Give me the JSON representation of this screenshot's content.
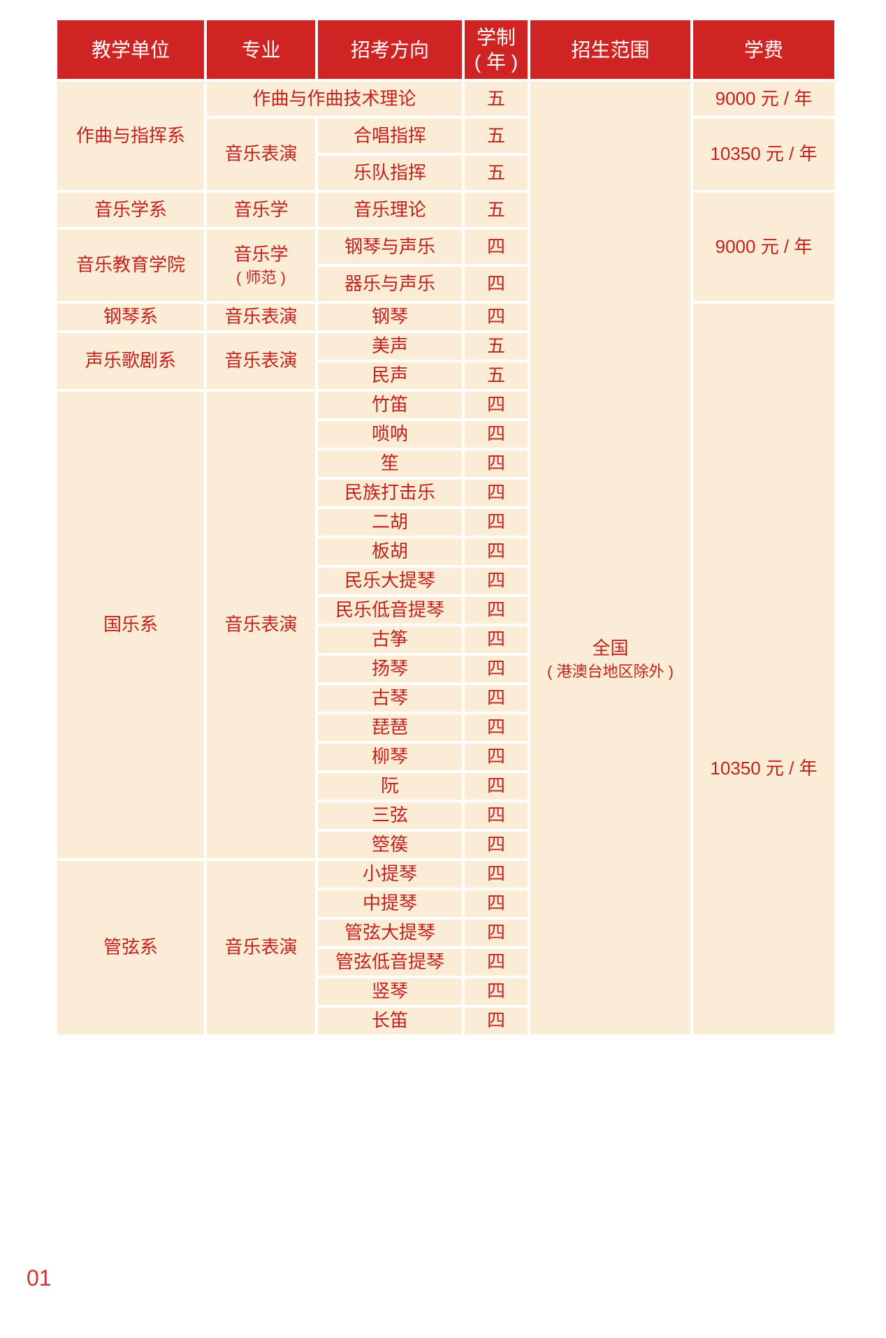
{
  "page": {
    "number": "01"
  },
  "colors": {
    "header_bg": "#ce2424",
    "header_text": "#ffffff",
    "cell_bg": "#faecd5",
    "text_red": "#c32020",
    "page_bg": "#ffffff",
    "page_number": "#d2302f"
  },
  "table": {
    "columns": [
      {
        "key": "unit",
        "label": "教学单位"
      },
      {
        "key": "major",
        "label": "专业"
      },
      {
        "key": "direction",
        "label": "招考方向"
      },
      {
        "key": "duration",
        "label": "学制",
        "label2": "( 年 )"
      },
      {
        "key": "scope",
        "label": "招生范围"
      },
      {
        "key": "fee",
        "label": "学费"
      }
    ],
    "rows": [
      {
        "cells": [
          {
            "col": "unit",
            "t": "作曲与指挥系",
            "rs": 3
          },
          {
            "col": "direction",
            "t": "作曲与作曲技术理论",
            "cs": 2
          },
          {
            "col": "duration",
            "t": "五"
          },
          {
            "col": "scope",
            "t": "全国",
            "t2": "( 港澳台地区除外 )",
            "rs": 31,
            "pad": 290
          },
          {
            "col": "fee",
            "t": "9000 元 / 年"
          }
        ]
      },
      {
        "cells": [
          {
            "col": "major",
            "t": "音乐表演",
            "rs": 2
          },
          {
            "col": "direction",
            "t": "合唱指挥"
          },
          {
            "col": "duration",
            "t": "五"
          },
          {
            "col": "fee",
            "t": "10350 元 / 年",
            "rs": 2
          }
        ]
      },
      {
        "cells": [
          {
            "col": "direction",
            "t": "乐队指挥"
          },
          {
            "col": "duration",
            "t": "五"
          }
        ]
      },
      {
        "cells": [
          {
            "col": "unit",
            "t": "音乐学系"
          },
          {
            "col": "major",
            "t": "音乐学"
          },
          {
            "col": "direction",
            "t": "音乐理论"
          },
          {
            "col": "duration",
            "t": "五"
          },
          {
            "col": "fee",
            "t": "9000 元 / 年",
            "rs": 3
          }
        ]
      },
      {
        "cells": [
          {
            "col": "unit",
            "t": "音乐教育学院",
            "rs": 2
          },
          {
            "col": "major",
            "t": "音乐学",
            "t2": "( 师范 )",
            "rs": 2
          },
          {
            "col": "direction",
            "t": "钢琴与声乐"
          },
          {
            "col": "duration",
            "t": "四"
          }
        ]
      },
      {
        "cells": [
          {
            "col": "direction",
            "t": "器乐与声乐"
          },
          {
            "col": "duration",
            "t": "四"
          }
        ]
      },
      {
        "cells": [
          {
            "col": "unit",
            "t": "钢琴系"
          },
          {
            "col": "major",
            "t": "音乐表演"
          },
          {
            "col": "direction",
            "t": "钢琴"
          },
          {
            "col": "duration",
            "t": "四"
          },
          {
            "col": "fee",
            "t": "10350 元 / 年",
            "rs": 25,
            "pad": 286
          }
        ]
      },
      {
        "cells": [
          {
            "col": "unit",
            "t": "声乐歌剧系",
            "rs": 2
          },
          {
            "col": "major",
            "t": "音乐表演",
            "rs": 2
          },
          {
            "col": "direction",
            "t": "美声"
          },
          {
            "col": "duration",
            "t": "五"
          }
        ]
      },
      {
        "cells": [
          {
            "col": "direction",
            "t": "民声"
          },
          {
            "col": "duration",
            "t": "五"
          }
        ]
      },
      {
        "cells": [
          {
            "col": "unit",
            "t": "国乐系",
            "rs": 16
          },
          {
            "col": "major",
            "t": "音乐表演",
            "rs": 16
          },
          {
            "col": "direction",
            "t": "竹笛"
          },
          {
            "col": "duration",
            "t": "四"
          }
        ]
      },
      {
        "cells": [
          {
            "col": "direction",
            "t": "唢呐"
          },
          {
            "col": "duration",
            "t": "四"
          }
        ]
      },
      {
        "cells": [
          {
            "col": "direction",
            "t": "笙"
          },
          {
            "col": "duration",
            "t": "四"
          }
        ]
      },
      {
        "cells": [
          {
            "col": "direction",
            "t": "民族打击乐"
          },
          {
            "col": "duration",
            "t": "四"
          }
        ]
      },
      {
        "cells": [
          {
            "col": "direction",
            "t": "二胡"
          },
          {
            "col": "duration",
            "t": "四"
          }
        ]
      },
      {
        "cells": [
          {
            "col": "direction",
            "t": "板胡"
          },
          {
            "col": "duration",
            "t": "四"
          }
        ]
      },
      {
        "cells": [
          {
            "col": "direction",
            "t": "民乐大提琴"
          },
          {
            "col": "duration",
            "t": "四"
          }
        ]
      },
      {
        "cells": [
          {
            "col": "direction",
            "t": "民乐低音提琴"
          },
          {
            "col": "duration",
            "t": "四"
          }
        ]
      },
      {
        "cells": [
          {
            "col": "direction",
            "t": "古筝"
          },
          {
            "col": "duration",
            "t": "四"
          }
        ]
      },
      {
        "cells": [
          {
            "col": "direction",
            "t": "扬琴"
          },
          {
            "col": "duration",
            "t": "四"
          }
        ]
      },
      {
        "cells": [
          {
            "col": "direction",
            "t": "古琴"
          },
          {
            "col": "duration",
            "t": "四"
          }
        ]
      },
      {
        "cells": [
          {
            "col": "direction",
            "t": "琵琶"
          },
          {
            "col": "duration",
            "t": "四"
          }
        ]
      },
      {
        "cells": [
          {
            "col": "direction",
            "t": "柳琴"
          },
          {
            "col": "duration",
            "t": "四"
          }
        ]
      },
      {
        "cells": [
          {
            "col": "direction",
            "t": "阮"
          },
          {
            "col": "duration",
            "t": "四"
          }
        ]
      },
      {
        "cells": [
          {
            "col": "direction",
            "t": "三弦"
          },
          {
            "col": "duration",
            "t": "四"
          }
        ]
      },
      {
        "cells": [
          {
            "col": "direction",
            "t": "箜篌"
          },
          {
            "col": "duration",
            "t": "四"
          }
        ]
      },
      {
        "cells": [
          {
            "col": "unit",
            "t": "管弦系",
            "rs": 6
          },
          {
            "col": "major",
            "t": "音乐表演",
            "rs": 6
          },
          {
            "col": "direction",
            "t": "小提琴"
          },
          {
            "col": "duration",
            "t": "四"
          }
        ]
      },
      {
        "cells": [
          {
            "col": "direction",
            "t": "中提琴"
          },
          {
            "col": "duration",
            "t": "四"
          }
        ]
      },
      {
        "cells": [
          {
            "col": "direction",
            "t": "管弦大提琴"
          },
          {
            "col": "duration",
            "t": "四"
          }
        ]
      },
      {
        "cells": [
          {
            "col": "direction",
            "t": "管弦低音提琴"
          },
          {
            "col": "duration",
            "t": "四"
          }
        ]
      },
      {
        "cells": [
          {
            "col": "direction",
            "t": "竖琴"
          },
          {
            "col": "duration",
            "t": "四"
          }
        ]
      },
      {
        "cells": [
          {
            "col": "direction",
            "t": "长笛"
          },
          {
            "col": "duration",
            "t": "四"
          }
        ]
      }
    ]
  }
}
